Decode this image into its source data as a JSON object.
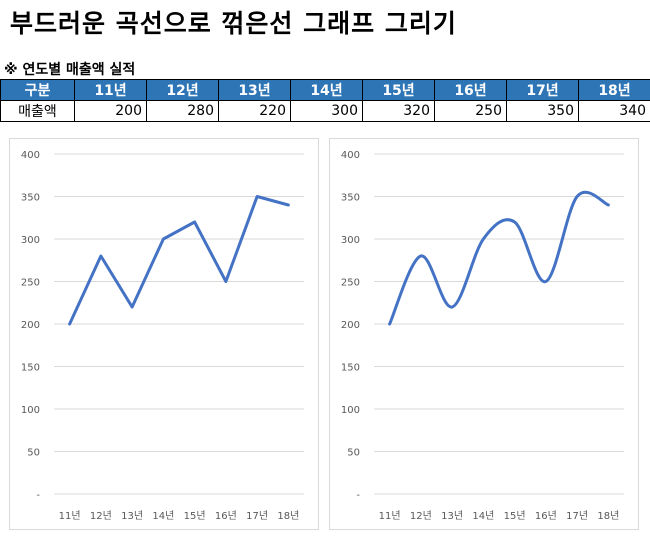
{
  "page_title": "부드러운 곡선으로 꺾은선 그래프 그리기",
  "section_title": "※ 연도별 매출액 실적",
  "table": {
    "header_label": "구분",
    "columns": [
      "11년",
      "12년",
      "13년",
      "14년",
      "15년",
      "16년",
      "17년",
      "18년"
    ],
    "row_label": "매출액",
    "values": [
      "200",
      "280",
      "220",
      "300",
      "320",
      "250",
      "350",
      "340"
    ]
  },
  "colors": {
    "series": "#4472c4",
    "table_header": "#2e75b6",
    "grid": "#d9d9d9"
  },
  "chart_data": [
    {
      "type": "line",
      "categories": [
        "11년",
        "12년",
        "13년",
        "14년",
        "15년",
        "16년",
        "17년",
        "18년"
      ],
      "series": [
        {
          "values": [
            200,
            280,
            220,
            300,
            320,
            250,
            350,
            340
          ]
        }
      ],
      "y_ticks": [
        "-",
        "50",
        "100",
        "150",
        "200",
        "250",
        "300",
        "350",
        "400"
      ],
      "ylim": [
        0,
        400
      ],
      "smooth": false,
      "grid": true
    },
    {
      "type": "line",
      "categories": [
        "11년",
        "12년",
        "13년",
        "14년",
        "15년",
        "16년",
        "17년",
        "18년"
      ],
      "series": [
        {
          "values": [
            200,
            280,
            220,
            300,
            320,
            250,
            350,
            340
          ]
        }
      ],
      "y_ticks": [
        "-",
        "50",
        "100",
        "150",
        "200",
        "250",
        "300",
        "350",
        "400"
      ],
      "ylim": [
        0,
        400
      ],
      "smooth": true,
      "grid": true
    }
  ]
}
